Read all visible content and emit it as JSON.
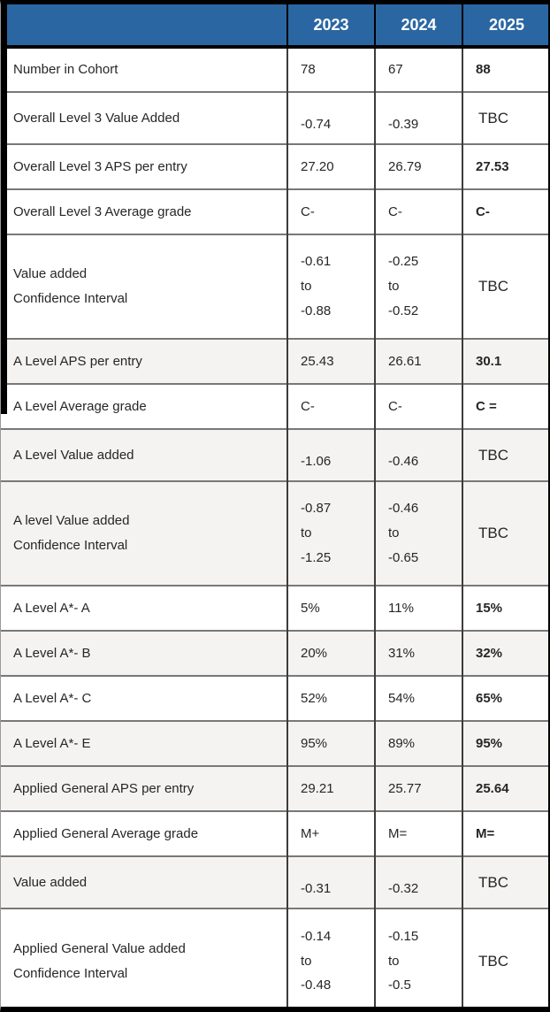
{
  "colors": {
    "header_bg": "#2a67a2",
    "header_text": "#ffffff",
    "shaded_row_bg": "#f4f3f1",
    "frame": "#000000"
  },
  "table": {
    "columns": [
      "",
      "2023",
      "2024",
      "2025"
    ],
    "rows": [
      {
        "label": "Number in Cohort",
        "values": [
          "78",
          "67",
          "88"
        ],
        "shaded": false,
        "lowered": false
      },
      {
        "label": "Overall Level 3 Value Added",
        "values": [
          "-0.74",
          "-0.39",
          "TBC"
        ],
        "shaded": false,
        "lowered": true
      },
      {
        "label": "Overall Level 3 APS per entry",
        "values": [
          "27.20",
          "26.79",
          "27.53"
        ],
        "shaded": false,
        "lowered": false
      },
      {
        "label": "Overall Level 3 Average grade",
        "values": [
          "C-",
          "C-",
          "C-"
        ],
        "shaded": false,
        "lowered": false
      },
      {
        "label": "Value added\nConfidence Interval",
        "values": [
          "-0.61\nto\n-0.88",
          "-0.25\nto\n-0.52",
          "TBC"
        ],
        "shaded": false,
        "lowered": false
      },
      {
        "label": "A Level APS per entry",
        "values": [
          "25.43",
          "26.61",
          "30.1"
        ],
        "shaded": true,
        "lowered": false
      },
      {
        "label": "A Level Average grade",
        "values": [
          "C-",
          "C-",
          "C ="
        ],
        "shaded": false,
        "lowered": false
      },
      {
        "label": "A Level Value added",
        "values": [
          "-1.06",
          "-0.46",
          "TBC"
        ],
        "shaded": true,
        "lowered": true
      },
      {
        "label": "A level Value added\nConfidence Interval",
        "values": [
          "-0.87\nto\n-1.25",
          "-0.46\nto\n-0.65",
          "TBC"
        ],
        "shaded": true,
        "lowered": false
      },
      {
        "label": "A Level A*- A",
        "values": [
          "5%",
          "11%",
          "15%"
        ],
        "shaded": false,
        "lowered": false
      },
      {
        "label": "A Level A*- B",
        "values": [
          "20%",
          "31%",
          "32%"
        ],
        "shaded": true,
        "lowered": false
      },
      {
        "label": "A Level A*- C",
        "values": [
          "52%",
          "54%",
          "65%"
        ],
        "shaded": false,
        "lowered": false
      },
      {
        "label": "A Level A*- E",
        "values": [
          "95%",
          "89%",
          "95%"
        ],
        "shaded": true,
        "lowered": false
      },
      {
        "label": "Applied General APS per entry",
        "values": [
          "29.21",
          "25.77",
          "25.64"
        ],
        "shaded": true,
        "lowered": false
      },
      {
        "label": "Applied General Average grade",
        "values": [
          "M+",
          "M=",
          "M="
        ],
        "shaded": false,
        "lowered": false
      },
      {
        "label": "Value added",
        "values": [
          "-0.31",
          "-0.32",
          "TBC"
        ],
        "shaded": true,
        "lowered": true
      },
      {
        "label": "Applied General Value added\nConfidence Interval",
        "values": [
          "-0.14\nto\n-0.48",
          "-0.15\nto\n-0.5",
          "TBC"
        ],
        "shaded": false,
        "lowered": false
      }
    ]
  }
}
